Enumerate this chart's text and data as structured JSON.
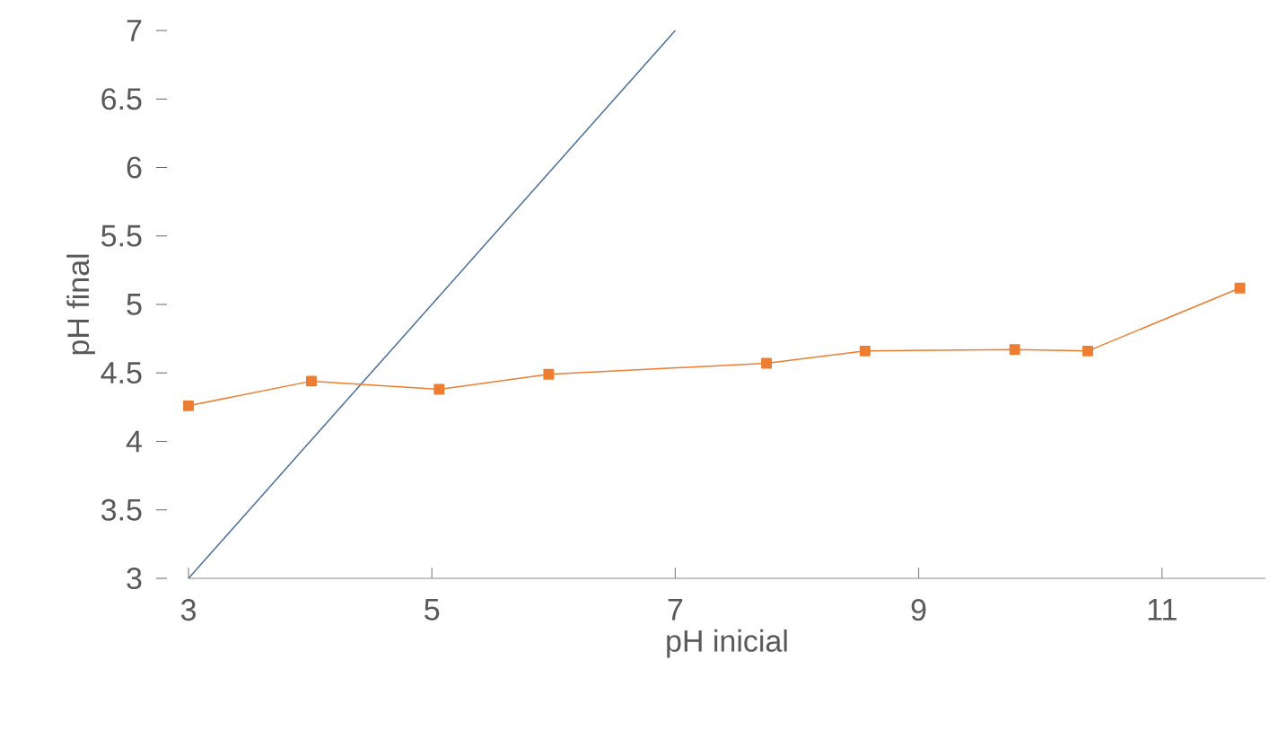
{
  "chart_data": {
    "type": "line",
    "xlabel": "pH inicial",
    "ylabel": "pH final",
    "xlim": [
      3,
      11.85
    ],
    "ylim": [
      3,
      7
    ],
    "xticks": [
      3,
      5,
      7,
      9,
      11
    ],
    "yticks": [
      3,
      3.5,
      4,
      4.5,
      5,
      5.5,
      6,
      6.5,
      7
    ],
    "grid": false,
    "series": [
      {
        "color": "#4a6f95",
        "x": [
          3,
          7
        ],
        "values": [
          3,
          7
        ],
        "marker": "none"
      },
      {
        "color": "#ed7d31",
        "x": [
          3,
          4.01,
          5.06,
          5.96,
          7.75,
          8.56,
          9.79,
          10.39,
          11.64
        ],
        "values": [
          4.26,
          4.44,
          4.38,
          4.49,
          4.57,
          4.66,
          4.67,
          4.66,
          5.12
        ],
        "marker": "square"
      }
    ]
  }
}
